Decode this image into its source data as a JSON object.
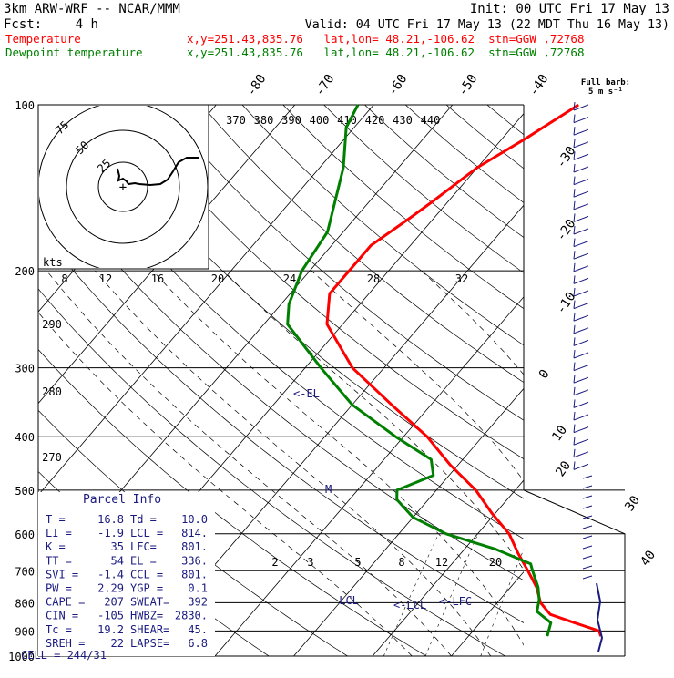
{
  "header": {
    "model": "3km ARW-WRF -- NCAR/MMM",
    "init": "Init: 00 UTC Fri 17 May 13",
    "fcst_label": "Fcst:",
    "fcst_value": "4 h",
    "valid": "Valid: 04 UTC Fri 17 May 13 (22 MDT Thu 16 May 13)",
    "lines": [
      {
        "name": "Temperature",
        "info": "x,y=251.43,835.76   lat,lon= 48.21,-106.62  stn=GGW ,72768",
        "color": "#ff0000"
      },
      {
        "name": "Dewpoint temperature",
        "info": "x,y=251.43,835.76   lat,lon= 48.21,-106.62  stn=GGW ,72768",
        "color": "#008000"
      }
    ]
  },
  "barb_key": {
    "line1": "Full barb:",
    "line2": "5 m s⁻¹"
  },
  "chart_data": {
    "type": "line",
    "title": "",
    "y_pressure_levels": [
      100,
      200,
      300,
      400,
      500,
      600,
      700,
      800,
      900,
      1000
    ],
    "isotherm_labels": [
      "-80",
      "-70",
      "-60",
      "-50",
      "-40",
      "-30",
      "-20",
      "-10",
      "0",
      "10",
      "20",
      "30",
      "40"
    ],
    "theta_labels": [
      "370",
      "380",
      "390",
      "400",
      "410",
      "420",
      "430",
      "440"
    ],
    "theta_side_labels": [
      "290",
      "280",
      "270"
    ],
    "mixing_ratio_top_labels": [
      "8",
      "12",
      "16",
      "20",
      "24",
      "28",
      "32"
    ],
    "mixing_ratio_low_labels": [
      "2",
      "3",
      "5",
      "8",
      "12",
      "20"
    ],
    "series": [
      {
        "name": "Temperature",
        "color": "#ff0000",
        "points": [
          [
            920,
            16.8
          ],
          [
            900,
            16
          ],
          [
            870,
            12
          ],
          [
            840,
            8
          ],
          [
            800,
            5.5
          ],
          [
            750,
            3.3
          ],
          [
            700,
            0.4
          ],
          [
            650,
            -2.8
          ],
          [
            600,
            -6
          ],
          [
            550,
            -10.5
          ],
          [
            500,
            -15
          ],
          [
            450,
            -21
          ],
          [
            400,
            -27
          ],
          [
            350,
            -35
          ],
          [
            300,
            -44
          ],
          [
            250,
            -52
          ],
          [
            220,
            -55
          ],
          [
            200,
            -55
          ],
          [
            180,
            -55
          ],
          [
            160,
            -53
          ],
          [
            150,
            -52
          ],
          [
            130,
            -50
          ],
          [
            115,
            -47
          ],
          [
            100,
            -44
          ]
        ]
      },
      {
        "name": "Dewpoint temperature",
        "color": "#008000",
        "points": [
          [
            920,
            10
          ],
          [
            870,
            9
          ],
          [
            830,
            6
          ],
          [
            790,
            5
          ],
          [
            750,
            3.5
          ],
          [
            700,
            1
          ],
          [
            680,
            0
          ],
          [
            640,
            -6
          ],
          [
            600,
            -14
          ],
          [
            560,
            -20
          ],
          [
            520,
            -24
          ],
          [
            500,
            -25
          ],
          [
            470,
            -22
          ],
          [
            440,
            -24
          ],
          [
            400,
            -31
          ],
          [
            350,
            -40
          ],
          [
            300,
            -48
          ],
          [
            250,
            -57
          ],
          [
            230,
            -59
          ],
          [
            200,
            -61
          ],
          [
            170,
            -62
          ],
          [
            130,
            -67
          ],
          [
            110,
            -71
          ],
          [
            100,
            -72
          ]
        ]
      }
    ],
    "annotations": [
      "<-EL",
      "-LCL",
      "<-LCL",
      "<-LFC",
      "M"
    ],
    "hodograph": {
      "unit_label": "kts",
      "ring_labels": [
        "25",
        "50",
        "75"
      ]
    }
  },
  "parcel_info": {
    "title": "Parcel Info",
    "rows": [
      [
        "T  =",
        "16.8",
        "Td =",
        "10.0"
      ],
      [
        "LI =",
        "-1.9",
        "LCL =",
        "814."
      ],
      [
        "K  =",
        "35",
        "LFC=",
        "801."
      ],
      [
        "TT =",
        "54",
        "EL =",
        "336."
      ],
      [
        "SVI =",
        "-1.4",
        "CCL =",
        "801."
      ],
      [
        "PW =",
        "2.29",
        "YGP =",
        "0.1"
      ],
      [
        "CAPE =",
        "207",
        "SWEAT=",
        "392"
      ],
      [
        "CIN =",
        "-105",
        "HWBZ=",
        "2830."
      ],
      [
        "Tc =",
        "19.2",
        "SHEAR=",
        "45."
      ],
      [
        "SREH =",
        "22",
        "LAPSE=",
        "6.8"
      ]
    ],
    "last_row": "CELL = 244/31"
  }
}
